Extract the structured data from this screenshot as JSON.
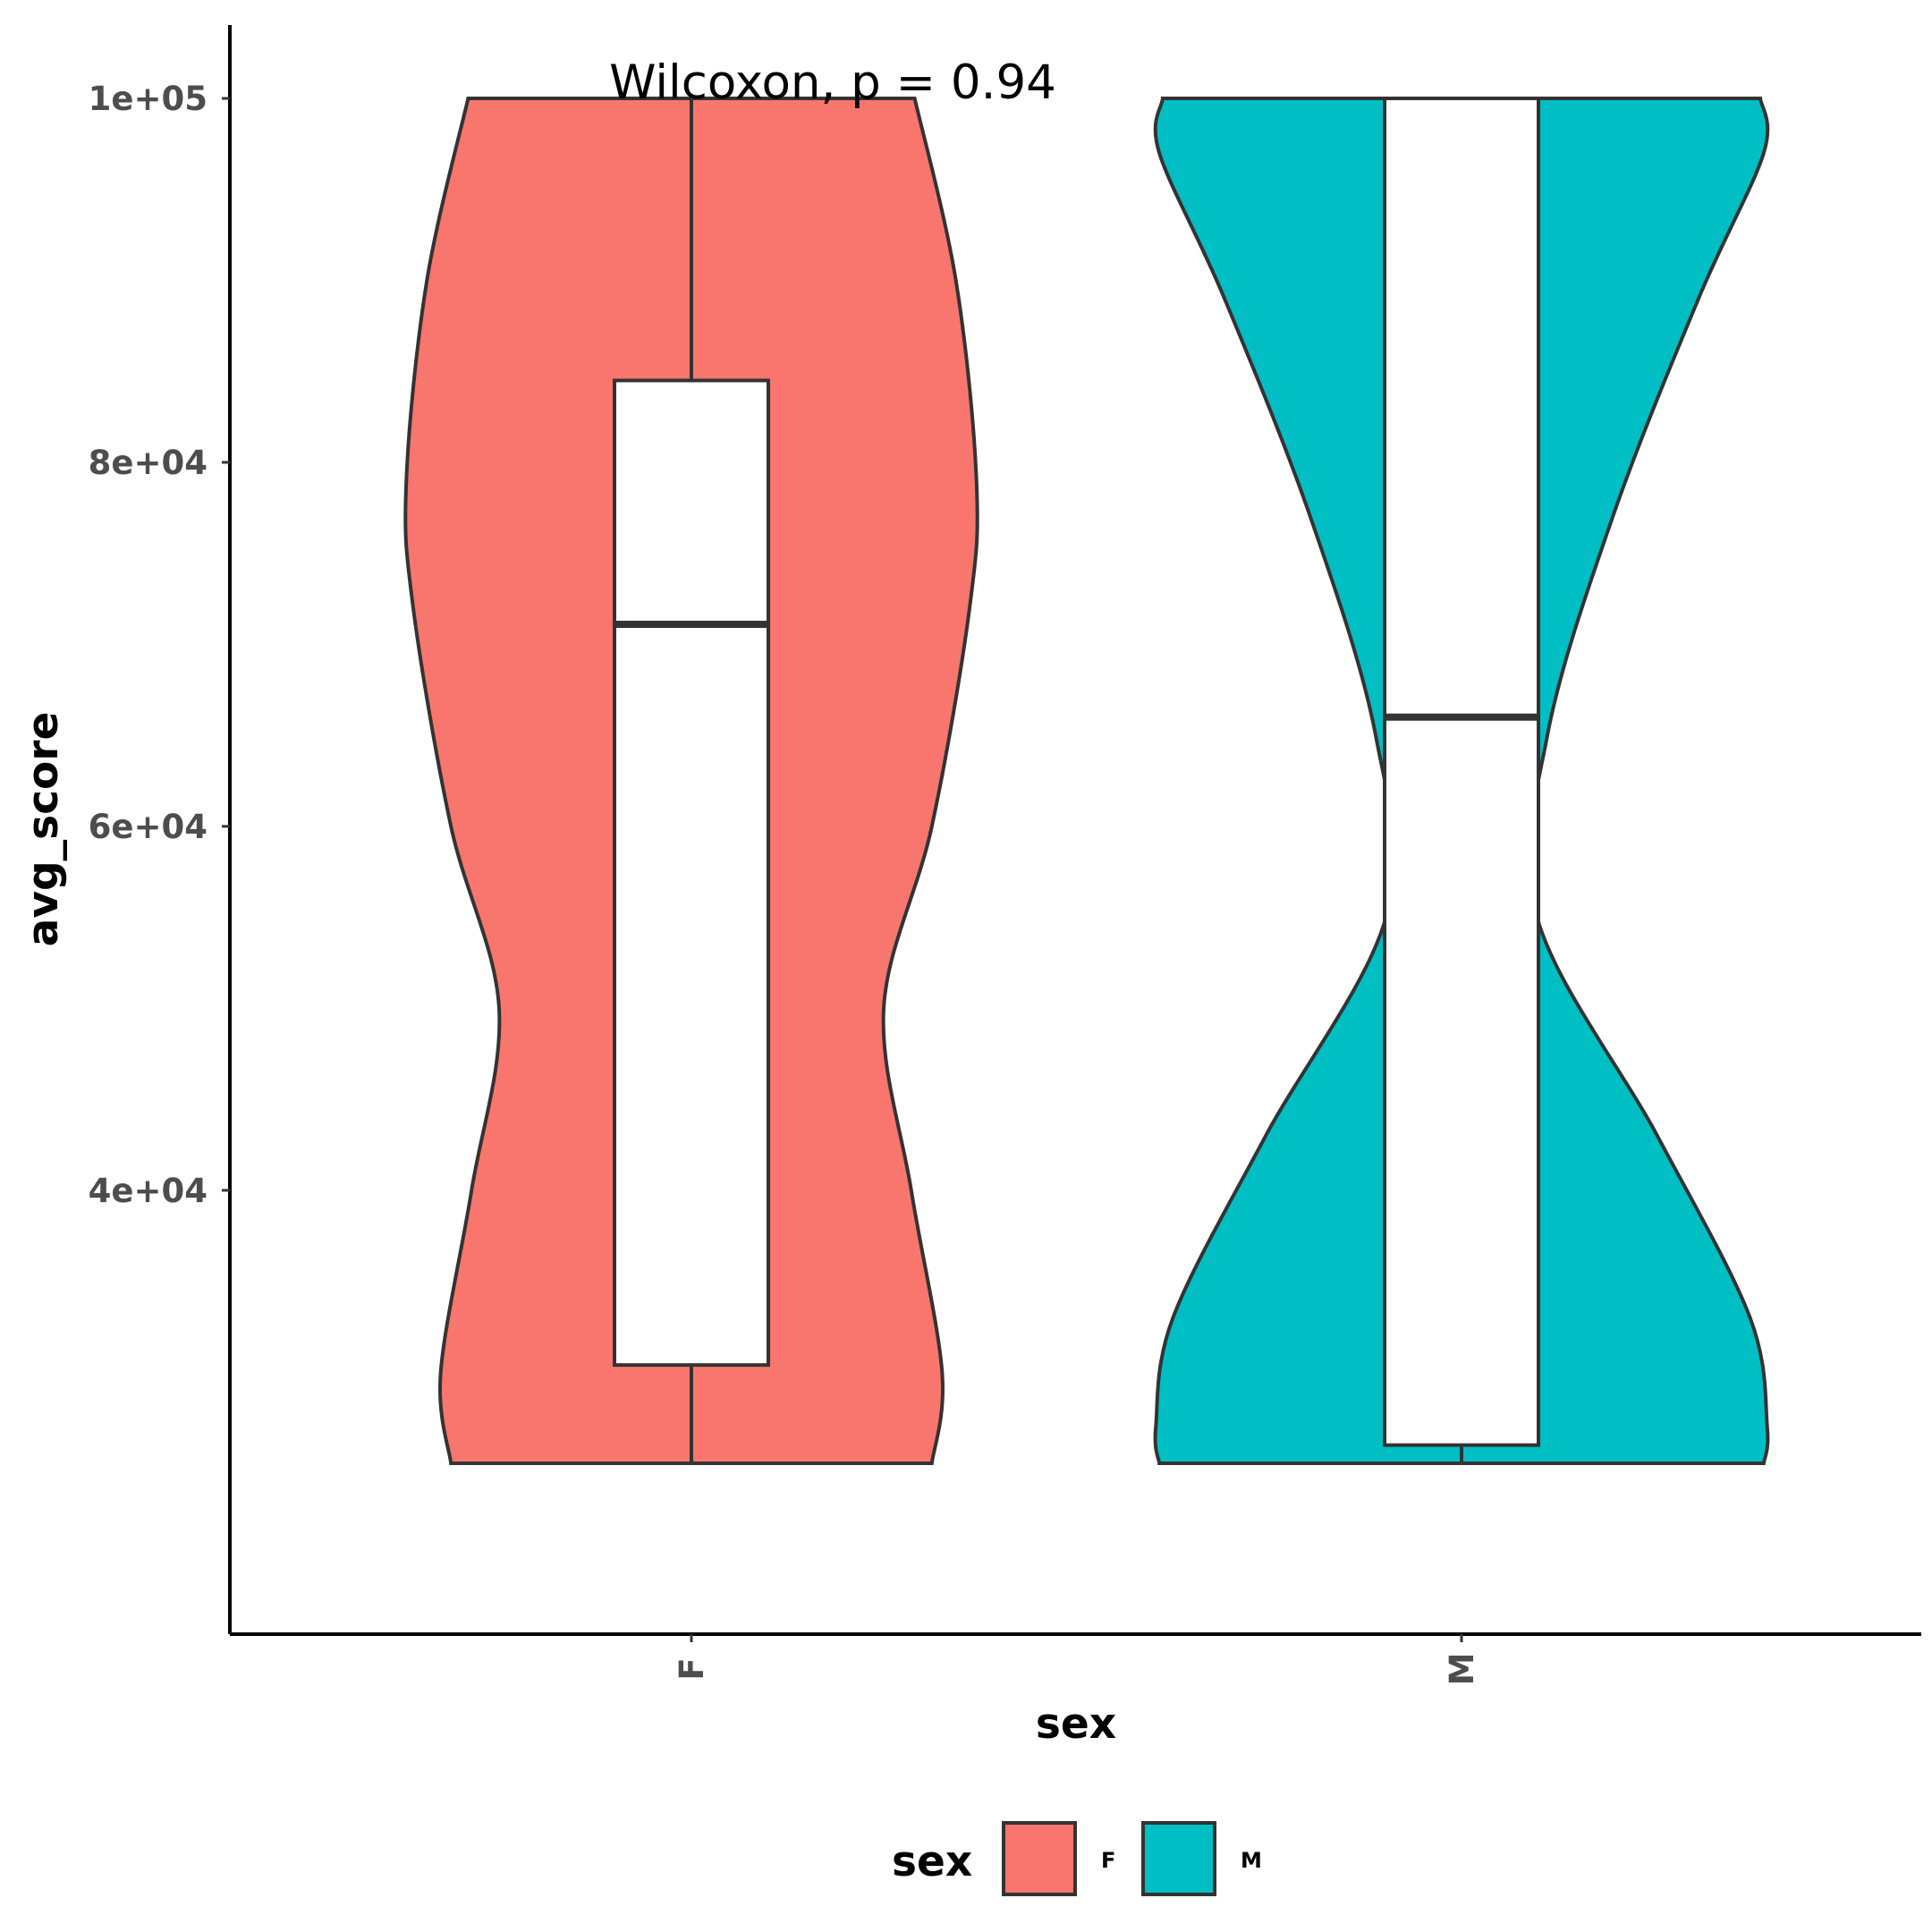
{
  "chart_data": {
    "type": "violin",
    "xlabel": "sex",
    "ylabel": "avg_score",
    "categories": [
      "F",
      "M"
    ],
    "colors": {
      "F": "#F8766D",
      "M": "#00BFC4"
    },
    "y_ticks": [
      {
        "value": 40000,
        "label": "4e+04"
      },
      {
        "value": 60000,
        "label": "6e+04"
      },
      {
        "value": 80000,
        "label": "8e+04"
      },
      {
        "value": 100000,
        "label": "1e+05"
      }
    ],
    "ylim": [
      21300,
      103700
    ],
    "annotation": "Wilcoxon, p = 0.94",
    "legend": {
      "title": "sex",
      "position": "bottom",
      "items": [
        "F",
        "M"
      ]
    },
    "series": [
      {
        "name": "F",
        "min": 25000,
        "q1": 30400,
        "median": 71100,
        "q3": 84500,
        "max": 100000,
        "density": [
          {
            "y": 25000,
            "w": 0.7
          },
          {
            "y": 30000,
            "w": 0.73
          },
          {
            "y": 40000,
            "w": 0.64
          },
          {
            "y": 50000,
            "w": 0.56
          },
          {
            "y": 60000,
            "w": 0.7
          },
          {
            "y": 72000,
            "w": 0.81
          },
          {
            "y": 79000,
            "w": 0.83
          },
          {
            "y": 90000,
            "w": 0.77
          },
          {
            "y": 100000,
            "w": 0.65
          }
        ]
      },
      {
        "name": "M",
        "min": 25000,
        "q1": 26000,
        "median": 66000,
        "q3": 100000,
        "max": 100000,
        "density": [
          {
            "y": 25000,
            "w": 0.88
          },
          {
            "y": 27000,
            "w": 0.89
          },
          {
            "y": 33000,
            "w": 0.84
          },
          {
            "y": 43000,
            "w": 0.57
          },
          {
            "y": 55000,
            "w": 0.22
          },
          {
            "y": 65000,
            "w": 0.25
          },
          {
            "y": 77000,
            "w": 0.44
          },
          {
            "y": 89000,
            "w": 0.69
          },
          {
            "y": 97000,
            "w": 0.88
          },
          {
            "y": 100000,
            "w": 0.87
          }
        ]
      }
    ]
  }
}
